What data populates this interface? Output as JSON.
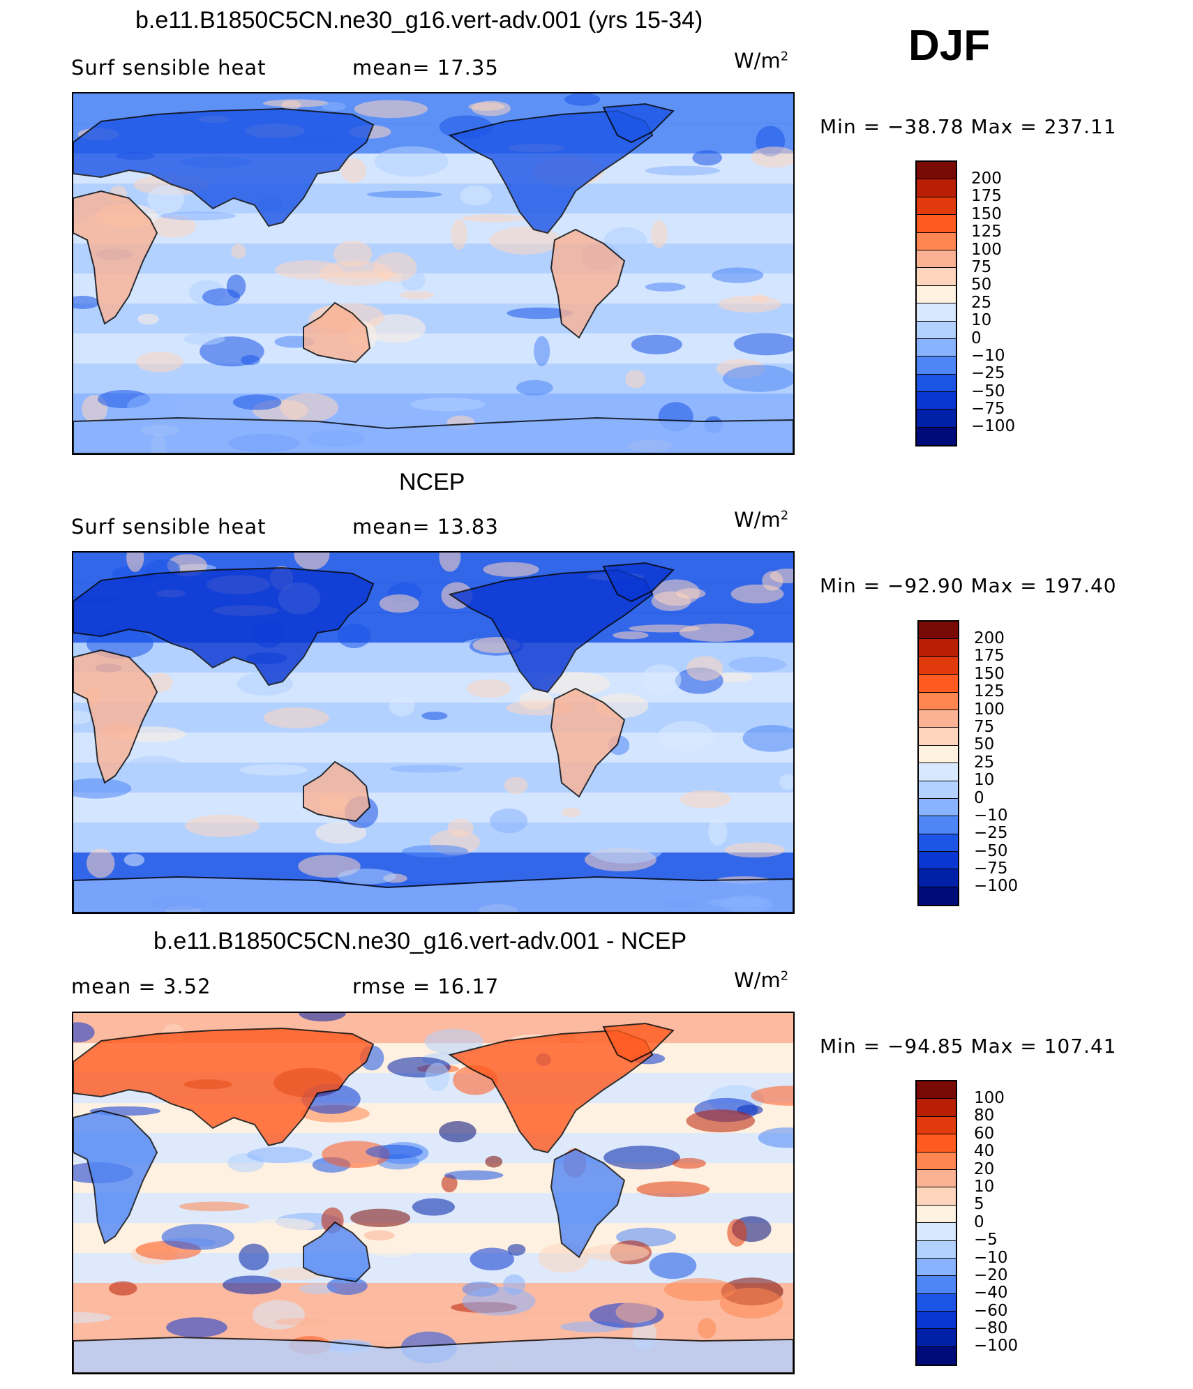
{
  "season": "DJF",
  "colors": {
    "land_outline": "#000000",
    "palette_main": [
      "#7a0a06",
      "#b81f05",
      "#e03a0d",
      "#ff5a1f",
      "#ff8650",
      "#fbb294",
      "#fdd5bd",
      "#fff1e0",
      "#d8e9ff",
      "#b3d1ff",
      "#89b2ff",
      "#4f86f5",
      "#1c55e6",
      "#0a36d2",
      "#0020a8",
      "#000b7a"
    ],
    "palette_diff": [
      "#7a0a06",
      "#b81f05",
      "#e03a0d",
      "#ff5a1f",
      "#ff8650",
      "#fbb294",
      "#fdd5bd",
      "#fff1e0",
      "#d8e9ff",
      "#b3d1ff",
      "#89b2ff",
      "#4f86f5",
      "#1c55e6",
      "#0a36d2",
      "#0020a8",
      "#000b7a"
    ]
  },
  "panels": [
    {
      "title": "b.e11.B1850C5CN.ne30_g16.vert-adv.001 (yrs 15-34)",
      "left_label": "Surf  sensible  heat",
      "mid_label": "mean=   17.35",
      "units": "W/m",
      "units_sup": "2",
      "min_max": "Min  =  −38.78  Max  =  237.11",
      "colorbar_labels": [
        "200",
        "175",
        "150",
        "125",
        "100",
        "75",
        "50",
        "25",
        "10",
        "0",
        "−10",
        "−25",
        "−50",
        "−75",
        "−100"
      ],
      "field_bias": 0.25
    },
    {
      "title": "NCEP",
      "left_label": "Surf  sensible  heat",
      "mid_label": "mean=   13.83",
      "units": "W/m",
      "units_sup": "2",
      "min_max": "Min  =  −92.90  Max  =  197.40",
      "colorbar_labels": [
        "200",
        "175",
        "150",
        "125",
        "100",
        "75",
        "50",
        "25",
        "10",
        "0",
        "−10",
        "−25",
        "−50",
        "−75",
        "−100"
      ],
      "field_bias": -0.1
    },
    {
      "title": "b.e11.B1850C5CN.ne30_g16.vert-adv.001 - NCEP",
      "left_label": "mean  =      3.52",
      "mid_label": "rmse  =    16.17",
      "units": "W/m",
      "units_sup": "2",
      "min_max": "Min  =  −94.85  Max  =  107.41",
      "colorbar_labels": [
        "100",
        "80",
        "60",
        "40",
        "20",
        "10",
        "5",
        "0",
        "−5",
        "−10",
        "−20",
        "−40",
        "−60",
        "−80",
        "−100"
      ],
      "field_bias": 0.5
    }
  ]
}
